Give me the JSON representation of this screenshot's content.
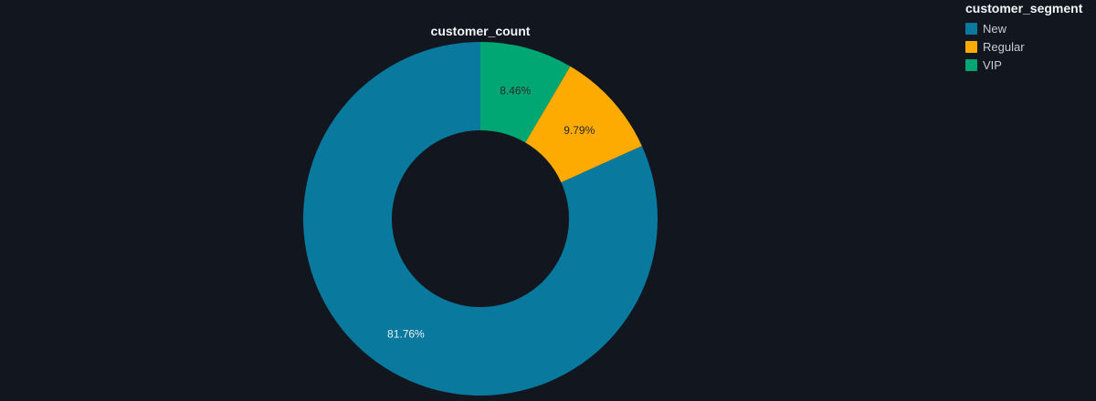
{
  "chart_data": {
    "type": "pie",
    "hole": true,
    "title": "customer_count",
    "legend_title": "customer_segment",
    "legend_position": "top-right",
    "slices": [
      {
        "label": "New",
        "percent": 81.76,
        "percent_label": "81.76%",
        "color": "#0a799e",
        "text_color": "#e8eef4"
      },
      {
        "label": "Regular",
        "percent": 9.79,
        "percent_label": "9.79%",
        "color": "#fdab00",
        "text_color": "#2a2a2a"
      },
      {
        "label": "VIP",
        "percent": 8.46,
        "percent_label": "8.46%",
        "color": "#00a772",
        "text_color": "#2a2a2a"
      }
    ],
    "background_color": "#12161e"
  }
}
